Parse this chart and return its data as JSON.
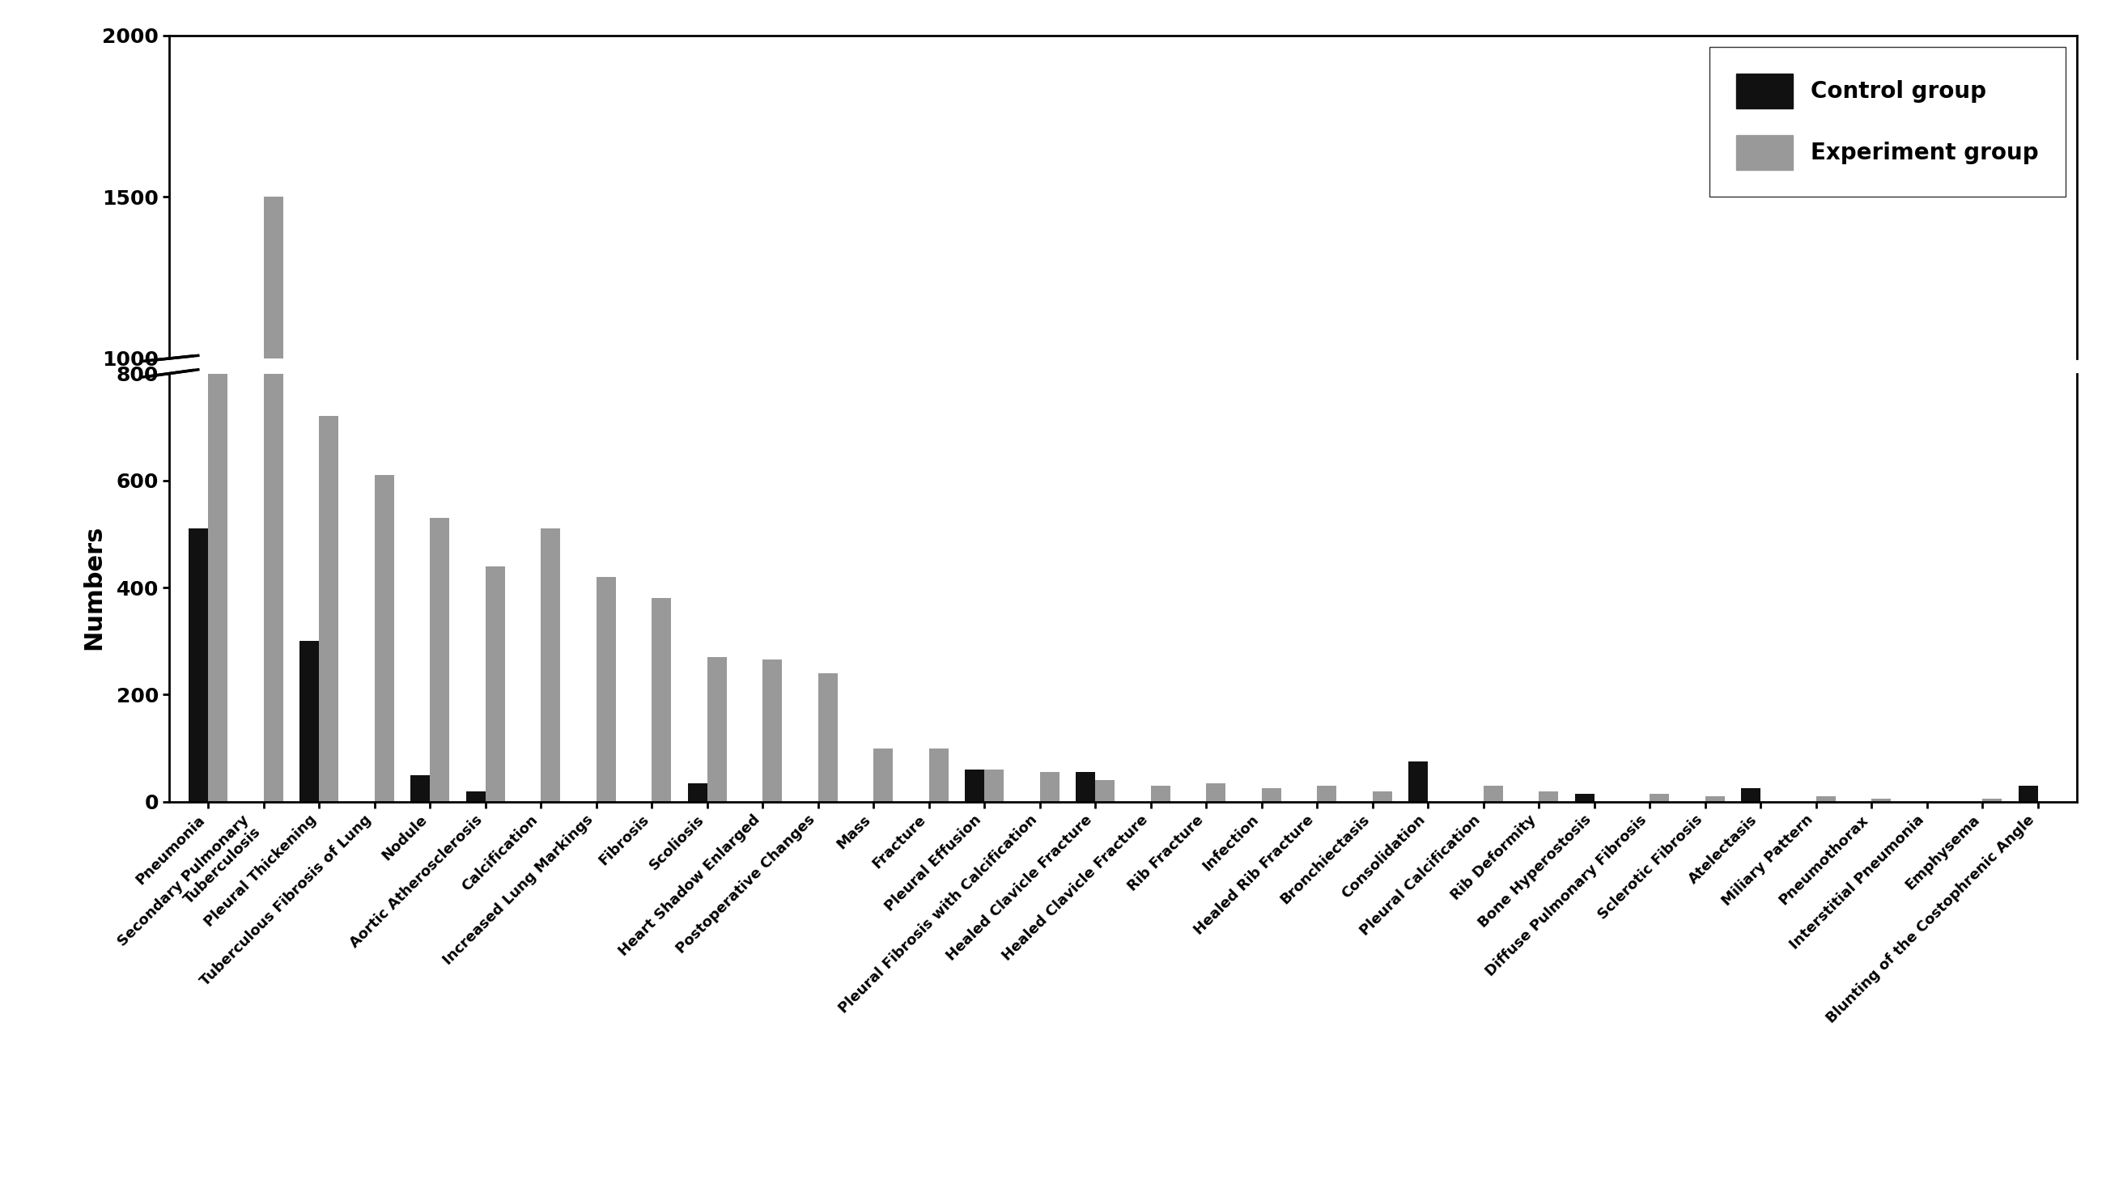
{
  "categories": [
    "Pneumonia",
    "Secondary Pulmonary\nTuberculosis",
    "Pleural Thickening",
    "Tuberculous Fibrosis of Lung",
    "Nodule",
    "Aortic Atherosclerosis",
    "Calcification",
    "Increased Lung Markings",
    "Fibrosis",
    "Scoliosis",
    "Heart Shadow Enlarged",
    "Postoperative Changes",
    "Mass",
    "Fracture",
    "Pleural Effusion",
    "Pleural Fibrosis with Calcification",
    "Healed Clavicle Fracture",
    "Healed Clavicle Fracture",
    "Rib Fracture",
    "Infection",
    "Healed Rib Fracture",
    "Bronchiectasis",
    "Consolidation",
    "Pleural Calcification",
    "Rib Deformity",
    "Bone Hyperostosis",
    "Diffuse Pulmonary Fibrosis",
    "Sclerotic Fibrosis",
    "Atelectasis",
    "Miliary Pattern",
    "Pneumothorax",
    "Interstitial Pneumonia",
    "Emphysema",
    "Blunting of the Costophrenic Angle"
  ],
  "control_values": [
    510,
    0,
    300,
    0,
    50,
    20,
    0,
    0,
    0,
    35,
    0,
    0,
    0,
    0,
    60,
    0,
    55,
    0,
    0,
    0,
    0,
    0,
    75,
    0,
    0,
    15,
    0,
    0,
    25,
    0,
    0,
    0,
    0,
    30
  ],
  "experiment_values": [
    800,
    1500,
    720,
    610,
    530,
    440,
    510,
    420,
    380,
    270,
    265,
    240,
    100,
    100,
    60,
    55,
    40,
    30,
    35,
    25,
    30,
    20,
    0,
    30,
    20,
    0,
    15,
    10,
    0,
    10,
    5,
    0,
    5,
    0
  ],
  "control_color": "#111111",
  "experiment_color": "#999999",
  "ylabel": "Numbers",
  "legend_control": "Control group",
  "legend_experiment": "Experiment group",
  "bar_width": 0.35,
  "background_color": "#ffffff",
  "ytick_values": [
    0,
    200,
    400,
    600,
    800,
    1000,
    1500,
    2000
  ],
  "ytick_labels": [
    "0",
    "200",
    "400",
    "600",
    "800",
    "1000",
    "1500",
    "2000"
  ]
}
